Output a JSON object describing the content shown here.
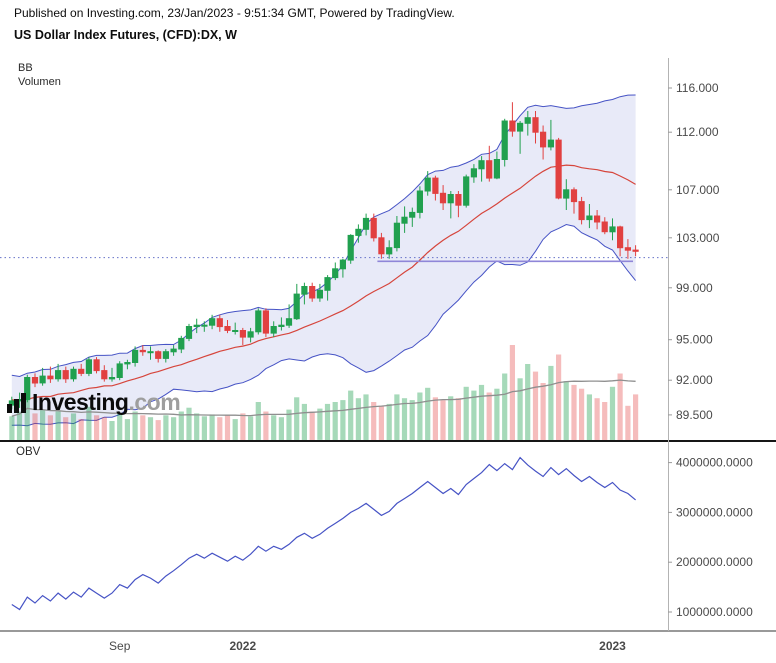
{
  "header": {
    "published_line": "Published on Investing.com, 23/Jan/2023 - 9:51:34 GMT, Powered by TradingView.",
    "title": "US Dollar Index Futures, (CFD):DX, W"
  },
  "price_pane": {
    "indicator_labels": {
      "bb": "BB",
      "volume": "Volumen"
    }
  },
  "obv_pane": {
    "label": "OBV"
  },
  "watermark": {
    "brand": "Investing",
    "suffix": ".com"
  },
  "colors": {
    "up": "#21a04f",
    "down": "#e14040",
    "vol_up": "rgba(33,160,79,0.40)",
    "vol_down": "rgba(225,64,64,0.35)",
    "bb_line": "#4653c5",
    "bb_fill": "rgba(95,105,205,0.14)",
    "bb_mid": "#d6453c",
    "vma": "#8f8f8f",
    "obv": "#4653c5",
    "dotted": "#6672c8",
    "support": "#8f86d8",
    "axis_text": "#4a4a4a",
    "axis_line": "#9a9a9a",
    "divider": "#161616"
  },
  "chart_data": [
    {
      "type": "candlestick",
      "symbol": "US Dollar Index Futures, (CFD):DX",
      "timeframe": "W",
      "y_axis": {
        "scale": "log",
        "ticks": [
          116,
          112,
          107,
          103,
          99,
          95,
          92,
          89.5
        ],
        "tick_labels": [
          "116.000",
          "112.000",
          "107.000",
          "103.000",
          "99.000",
          "95.000",
          "92.000",
          "89.500"
        ]
      },
      "x_axis": {
        "labels": [
          {
            "label": "Sep",
            "index": 14,
            "bold": false
          },
          {
            "label": "2022",
            "index": 30,
            "bold": true
          },
          {
            "label": "2023",
            "index": 78,
            "bold": true
          }
        ]
      },
      "candles_ohlc": [
        [
          90.2,
          90.8,
          89.9,
          90.5
        ],
        [
          90.5,
          91.1,
          90.0,
          90.6
        ],
        [
          90.6,
          92.4,
          90.4,
          92.2
        ],
        [
          92.2,
          92.5,
          91.5,
          91.8
        ],
        [
          91.8,
          92.9,
          91.6,
          92.3
        ],
        [
          92.3,
          93.0,
          91.8,
          92.1
        ],
        [
          92.1,
          93.2,
          91.9,
          92.7
        ],
        [
          92.7,
          93.0,
          91.8,
          92.1
        ],
        [
          92.1,
          93.0,
          91.9,
          92.8
        ],
        [
          92.8,
          93.2,
          92.3,
          92.5
        ],
        [
          92.5,
          93.7,
          92.3,
          93.5
        ],
        [
          93.5,
          93.7,
          92.5,
          92.7
        ],
        [
          92.7,
          93.1,
          91.9,
          92.1
        ],
        [
          92.1,
          92.9,
          91.9,
          92.2
        ],
        [
          92.2,
          93.4,
          92.0,
          93.2
        ],
        [
          93.2,
          93.5,
          92.8,
          93.3
        ],
        [
          93.3,
          94.5,
          93.0,
          94.2
        ],
        [
          94.2,
          94.6,
          93.8,
          94.1
        ],
        [
          94.1,
          94.5,
          93.5,
          94.1
        ],
        [
          94.1,
          94.2,
          93.3,
          93.6
        ],
        [
          93.6,
          94.3,
          93.3,
          94.1
        ],
        [
          94.1,
          94.6,
          93.8,
          94.3
        ],
        [
          94.3,
          95.3,
          94.0,
          95.1
        ],
        [
          95.1,
          96.2,
          94.9,
          96.0
        ],
        [
          96.0,
          96.6,
          95.5,
          96.1
        ],
        [
          96.1,
          96.4,
          95.6,
          96.1
        ],
        [
          96.1,
          96.9,
          95.8,
          96.6
        ],
        [
          96.6,
          96.9,
          95.6,
          96.0
        ],
        [
          96.0,
          96.5,
          95.5,
          95.7
        ],
        [
          95.7,
          96.3,
          95.4,
          95.7
        ],
        [
          95.7,
          95.9,
          94.6,
          95.2
        ],
        [
          95.2,
          95.9,
          94.8,
          95.6
        ],
        [
          95.6,
          97.4,
          95.4,
          97.2
        ],
        [
          97.2,
          97.4,
          95.2,
          95.5
        ],
        [
          95.5,
          96.4,
          95.2,
          96.0
        ],
        [
          96.0,
          96.7,
          95.7,
          96.1
        ],
        [
          96.1,
          97.7,
          95.9,
          96.6
        ],
        [
          96.6,
          99.3,
          96.5,
          98.5
        ],
        [
          98.5,
          99.4,
          97.7,
          99.1
        ],
        [
          99.1,
          99.4,
          97.9,
          98.2
        ],
        [
          98.2,
          99.3,
          97.9,
          98.8
        ],
        [
          98.8,
          100.0,
          98.0,
          99.8
        ],
        [
          99.8,
          101.0,
          99.6,
          100.5
        ],
        [
          100.5,
          101.3,
          99.8,
          101.2
        ],
        [
          101.2,
          103.3,
          100.9,
          103.2
        ],
        [
          103.2,
          104.1,
          102.6,
          103.7
        ],
        [
          103.7,
          105.0,
          103.2,
          104.6
        ],
        [
          104.6,
          105.0,
          102.7,
          103.0
        ],
        [
          103.0,
          103.4,
          101.3,
          101.7
        ],
        [
          101.7,
          102.8,
          101.3,
          102.2
        ],
        [
          102.2,
          104.8,
          101.9,
          104.2
        ],
        [
          104.2,
          105.6,
          103.4,
          104.7
        ],
        [
          104.7,
          105.5,
          103.9,
          105.1
        ],
        [
          105.1,
          107.3,
          104.6,
          106.9
        ],
        [
          106.9,
          108.6,
          106.5,
          108.0
        ],
        [
          108.0,
          108.2,
          106.1,
          106.7
        ],
        [
          106.7,
          107.4,
          105.3,
          105.9
        ],
        [
          105.9,
          106.9,
          104.6,
          106.6
        ],
        [
          106.6,
          106.9,
          104.7,
          105.7
        ],
        [
          105.7,
          108.3,
          105.5,
          108.1
        ],
        [
          108.1,
          109.2,
          107.6,
          108.8
        ],
        [
          108.8,
          109.9,
          107.7,
          109.5
        ],
        [
          109.5,
          110.8,
          107.7,
          108.0
        ],
        [
          108.0,
          110.3,
          107.9,
          109.6
        ],
        [
          109.6,
          113.2,
          109.0,
          113.0
        ],
        [
          113.0,
          114.7,
          111.6,
          112.1
        ],
        [
          112.1,
          113.0,
          110.1,
          112.8
        ],
        [
          112.8,
          113.9,
          111.7,
          113.3
        ],
        [
          113.3,
          113.9,
          111.0,
          112.0
        ],
        [
          112.0,
          112.6,
          109.6,
          110.7
        ],
        [
          110.7,
          113.1,
          110.4,
          111.3
        ],
        [
          111.3,
          111.5,
          106.2,
          106.3
        ],
        [
          106.3,
          107.9,
          105.3,
          107.0
        ],
        [
          107.0,
          107.2,
          105.0,
          106.0
        ],
        [
          106.0,
          106.4,
          104.1,
          104.5
        ],
        [
          104.5,
          105.8,
          103.8,
          104.8
        ],
        [
          104.8,
          105.3,
          103.7,
          104.3
        ],
        [
          104.3,
          104.7,
          103.3,
          103.5
        ],
        [
          103.5,
          104.6,
          102.8,
          103.9
        ],
        [
          103.9,
          104.0,
          101.5,
          102.2
        ],
        [
          102.2,
          102.9,
          101.3,
          102.0
        ],
        [
          102.0,
          102.4,
          101.5,
          101.9
        ]
      ],
      "volume": [
        25,
        30,
        45,
        28,
        32,
        26,
        30,
        24,
        28,
        22,
        35,
        26,
        24,
        20,
        28,
        22,
        30,
        26,
        24,
        21,
        26,
        24,
        30,
        34,
        28,
        25,
        27,
        24,
        26,
        22,
        28,
        25,
        40,
        30,
        26,
        24,
        32,
        45,
        38,
        30,
        33,
        38,
        40,
        42,
        52,
        44,
        48,
        40,
        36,
        38,
        48,
        44,
        42,
        50,
        55,
        45,
        42,
        46,
        44,
        56,
        52,
        58,
        50,
        54,
        70,
        100,
        65,
        80,
        72,
        60,
        78,
        90,
        62,
        58,
        54,
        48,
        44,
        40,
        56,
        70,
        36,
        48
      ],
      "indicators": {
        "bollinger": {
          "period": 20,
          "mult": 2,
          "seed_closes": [
            91.5,
            90.2,
            89.3,
            91.0,
            92.0,
            89.5,
            90.8,
            91.8,
            89.2,
            90.5,
            91.5,
            89.8,
            92.0,
            90.0,
            89.4,
            91.2,
            90.6,
            89.6,
            91.0
          ]
        },
        "volume_ma": {
          "period": 20
        }
      },
      "overlay_lines": {
        "dotted_price_level": 101.4,
        "support_segment": {
          "price": 101.1,
          "from_index": 48
        }
      }
    },
    {
      "type": "line",
      "name": "OBV",
      "values": [
        1150000,
        1050000,
        1300000,
        1180000,
        1330000,
        1220000,
        1380000,
        1260000,
        1400000,
        1300000,
        1480000,
        1380000,
        1280000,
        1380000,
        1550000,
        1480000,
        1650000,
        1750000,
        1680000,
        1580000,
        1720000,
        1830000,
        1950000,
        2080000,
        2160000,
        2080000,
        2180000,
        2100000,
        2020000,
        2120000,
        2040000,
        2160000,
        2320000,
        2220000,
        2320000,
        2260000,
        2360000,
        2500000,
        2580000,
        2480000,
        2560000,
        2680000,
        2780000,
        2880000,
        3000000,
        3080000,
        3180000,
        3060000,
        2940000,
        3020000,
        3180000,
        3280000,
        3380000,
        3500000,
        3620000,
        3500000,
        3380000,
        3480000,
        3360000,
        3560000,
        3680000,
        3800000,
        3960000,
        3840000,
        3980000,
        3860000,
        4100000,
        3950000,
        3830000,
        3720000,
        3900000,
        3760000,
        3880000,
        3740000,
        3620000,
        3720000,
        3600000,
        3500000,
        3600000,
        3450000,
        3380000,
        3250000
      ],
      "y_axis": {
        "ticks": [
          4000000,
          3000000,
          2000000,
          1000000
        ],
        "tick_labels": [
          "4000000.0000",
          "3000000.0000",
          "2000000.0000",
          "1000000.0000"
        ]
      }
    }
  ]
}
